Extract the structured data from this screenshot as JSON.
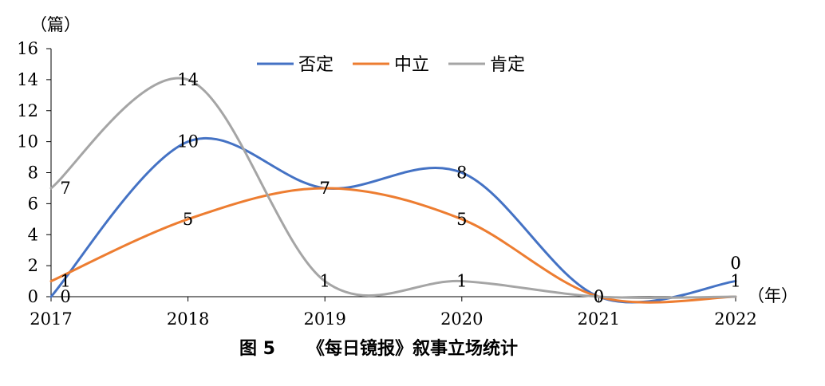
{
  "chart_data": {
    "type": "line",
    "title": "图 5　《每日镜报》叙事立场统计",
    "caption_figure": "图 5",
    "caption_text": "《每日镜报》叙事立场统计",
    "ylabel": "（篇）",
    "xlabel": "（年）",
    "categories": [
      "2017",
      "2018",
      "2019",
      "2020",
      "2021",
      "2022"
    ],
    "ylim": [
      0,
      16
    ],
    "yticks": [
      0,
      2,
      4,
      6,
      8,
      10,
      12,
      14,
      16
    ],
    "smooth": true,
    "grid": false,
    "legend_position": "top-center",
    "series": [
      {
        "name": "否定",
        "color": "#4472C4",
        "values": [
          0,
          10,
          7,
          8,
          0,
          1
        ],
        "labels": [
          "0",
          "10",
          "7",
          "8",
          "0",
          "1"
        ]
      },
      {
        "name": "中立",
        "color": "#ED7D31",
        "values": [
          1,
          5,
          7,
          5,
          0,
          0
        ],
        "labels": [
          "1",
          "5",
          "7",
          "5",
          "0",
          "0"
        ]
      },
      {
        "name": "肯定",
        "color": "#A5A5A5",
        "values": [
          7,
          14,
          1,
          1,
          0,
          0
        ],
        "labels": [
          "7",
          "14",
          "1",
          "1",
          "0",
          "0"
        ]
      }
    ]
  }
}
